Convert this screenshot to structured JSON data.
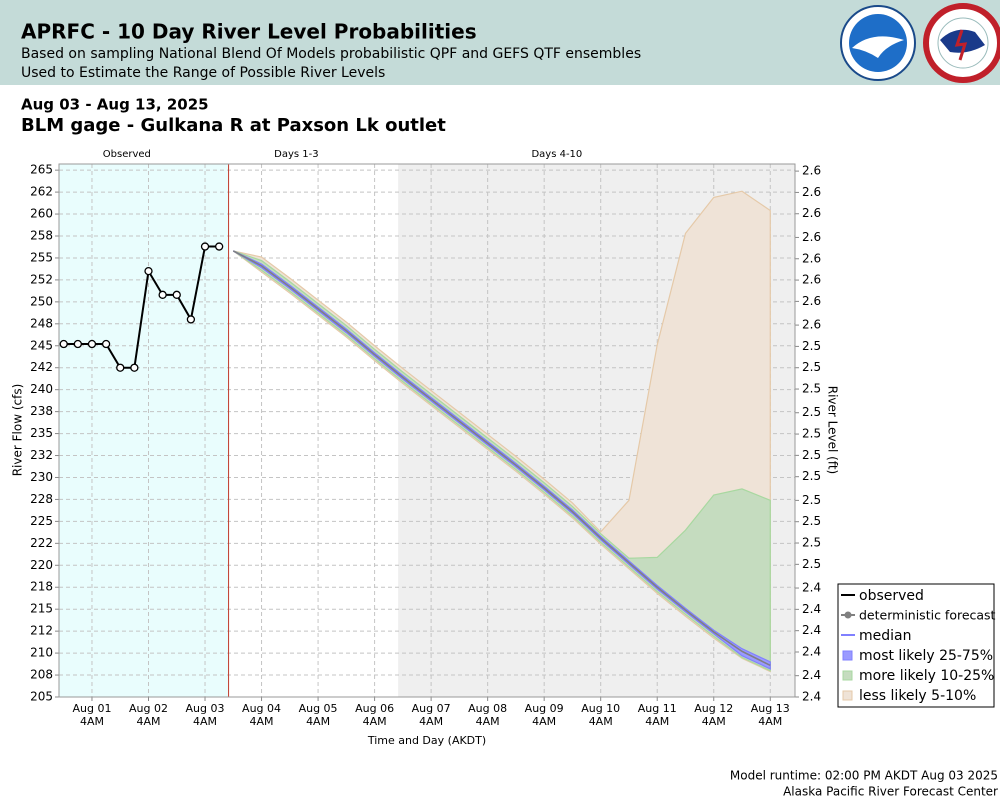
{
  "header": {
    "title": "APRFC - 10 Day River Level Probabilities",
    "subtitle": [
      "Based on sampling National Blend Of Models probabilistic QPF and GEFS QTF ensembles",
      "Used to Estimate the Range of Possible River Levels"
    ]
  },
  "chart_data": {
    "type": "line",
    "date_range": "Aug 03 - Aug 13, 2025",
    "title": "BLM gage - Gulkana R at Paxson Lk outlet",
    "ylabel": "River Flow (cfs)",
    "y2label": "River Level (ft)",
    "xlabel": "Time and Day (AKDT)",
    "xlim": [
      "2025-07-31T14:00",
      "2025-08-13T14:30"
    ],
    "xticks": [
      {
        "value": "2025-08-01T04:00",
        "label": [
          "Aug 01",
          "4AM"
        ]
      },
      {
        "value": "2025-08-02T04:00",
        "label": [
          "Aug 02",
          "4AM"
        ]
      },
      {
        "value": "2025-08-03T04:00",
        "label": [
          "Aug 03",
          "4AM"
        ]
      },
      {
        "value": "2025-08-04T04:00",
        "label": [
          "Aug 04",
          "4AM"
        ]
      },
      {
        "value": "2025-08-05T04:00",
        "label": [
          "Aug 05",
          "4AM"
        ]
      },
      {
        "value": "2025-08-06T04:00",
        "label": [
          "Aug 06",
          "4AM"
        ]
      },
      {
        "value": "2025-08-07T04:00",
        "label": [
          "Aug 07",
          "4AM"
        ]
      },
      {
        "value": "2025-08-08T04:00",
        "label": [
          "Aug 08",
          "4AM"
        ]
      },
      {
        "value": "2025-08-09T04:00",
        "label": [
          "Aug 09",
          "4AM"
        ]
      },
      {
        "value": "2025-08-10T04:00",
        "label": [
          "Aug 10",
          "4AM"
        ]
      },
      {
        "value": "2025-08-11T04:00",
        "label": [
          "Aug 11",
          "4AM"
        ]
      },
      {
        "value": "2025-08-12T04:00",
        "label": [
          "Aug 12",
          "4AM"
        ]
      },
      {
        "value": "2025-08-13T04:00",
        "label": [
          "Aug 13",
          "4AM"
        ]
      }
    ],
    "ylim": [
      205,
      265.7
    ],
    "yticks": [
      205,
      {
        "value": 207.5,
        "label": "208"
      },
      210,
      {
        "value": 212.5,
        "label": "212"
      },
      215,
      {
        "value": 217.5,
        "label": "218"
      },
      220,
      {
        "value": 222.5,
        "label": "222"
      },
      225,
      {
        "value": 227.5,
        "label": "228"
      },
      230,
      {
        "value": 232.5,
        "label": "232"
      },
      235,
      {
        "value": 237.5,
        "label": "238"
      },
      240,
      {
        "value": 242.5,
        "label": "242"
      },
      245,
      {
        "value": 247.5,
        "label": "248"
      },
      250,
      {
        "value": 252.5,
        "label": "252"
      },
      255,
      {
        "value": 257.5,
        "label": "258"
      },
      260,
      {
        "value": 262.5,
        "label": "262"
      },
      265
    ],
    "y2lim": [
      2.398,
      2.623
    ],
    "y2ticks": [
      {
        "value": 2.398,
        "label": "2.4"
      },
      {
        "value": 2.407,
        "label": "2.4"
      },
      {
        "value": 2.417,
        "label": "2.4"
      },
      {
        "value": 2.426,
        "label": "2.4"
      },
      {
        "value": 2.435,
        "label": "2.4"
      },
      {
        "value": 2.444,
        "label": "2.4"
      },
      {
        "value": 2.454,
        "label": "2.5"
      },
      {
        "value": 2.463,
        "label": "2.5"
      },
      {
        "value": 2.472,
        "label": "2.5"
      },
      {
        "value": 2.481,
        "label": "2.5"
      },
      {
        "value": 2.491,
        "label": "2.5"
      },
      {
        "value": 2.5,
        "label": "2.5"
      },
      {
        "value": 2.509,
        "label": "2.5"
      },
      {
        "value": 2.518,
        "label": "2.5"
      },
      {
        "value": 2.528,
        "label": "2.5"
      },
      {
        "value": 2.537,
        "label": "2.5"
      },
      {
        "value": 2.546,
        "label": "2.5"
      },
      {
        "value": 2.555,
        "label": "2.6"
      },
      {
        "value": 2.565,
        "label": "2.6"
      },
      {
        "value": 2.574,
        "label": "2.6"
      },
      {
        "value": 2.583,
        "label": "2.6"
      },
      {
        "value": 2.592,
        "label": "2.6"
      },
      {
        "value": 2.602,
        "label": "2.6"
      },
      {
        "value": 2.611,
        "label": "2.6"
      },
      {
        "value": 2.62,
        "label": "2.6"
      }
    ],
    "grid": true,
    "regions": [
      {
        "label": "Observed",
        "start": "2025-07-31T14:00",
        "end": "2025-08-03T14:00",
        "color": "#e9fdfd"
      },
      {
        "label": "Days 1-3",
        "start": "2025-08-03T14:00",
        "end": "2025-08-06T14:00",
        "color": "#ffffff"
      },
      {
        "label": "Days 4-10",
        "start": "2025-08-06T14:00",
        "end": "2025-08-13T14:30",
        "color": "#efefef"
      }
    ],
    "runtime_line": {
      "x": "2025-08-03T14:00",
      "color": "#c0392b"
    },
    "legend": "lower right",
    "series": [
      {
        "name": "observed",
        "color": "#000000",
        "marker": "circle",
        "x": [
          "2025-07-31T16:00",
          "2025-07-31T22:00",
          "2025-08-01T04:00",
          "2025-08-01T10:00",
          "2025-08-01T16:00",
          "2025-08-01T22:00",
          "2025-08-02T04:00",
          "2025-08-02T10:00",
          "2025-08-02T16:00",
          "2025-08-02T22:00",
          "2025-08-03T04:00",
          "2025-08-03T10:00"
        ],
        "values": [
          245.2,
          245.2,
          245.2,
          245.2,
          242.5,
          242.5,
          253.5,
          250.8,
          250.8,
          248.0,
          256.3,
          256.3
        ]
      },
      {
        "name": "deterministic forecast",
        "color": "#808080",
        "marker": "dot",
        "x": [
          "2025-08-03T16:00",
          "2025-08-04T04:00",
          "2025-08-04T16:00",
          "2025-08-05T04:00",
          "2025-08-05T16:00",
          "2025-08-06T04:00",
          "2025-08-06T16:00",
          "2025-08-07T04:00",
          "2025-08-07T16:00",
          "2025-08-08T04:00",
          "2025-08-08T16:00",
          "2025-08-09T04:00",
          "2025-08-09T16:00",
          "2025-08-10T04:00",
          "2025-08-10T16:00",
          "2025-08-11T04:00",
          "2025-08-11T16:00",
          "2025-08-12T04:00",
          "2025-08-12T16:00",
          "2025-08-13T04:00"
        ],
        "values": [
          255.8,
          254.1,
          251.7,
          249.2,
          246.7,
          244.0,
          241.4,
          238.9,
          236.4,
          233.9,
          231.4,
          228.8,
          226.1,
          223.1,
          220.3,
          217.5,
          214.9,
          212.4,
          210.2,
          208.6
        ]
      },
      {
        "name": "median",
        "color": "#8080ff",
        "x": [
          "2025-08-03T16:00",
          "2025-08-04T04:00",
          "2025-08-04T16:00",
          "2025-08-05T04:00",
          "2025-08-05T16:00",
          "2025-08-06T04:00",
          "2025-08-06T16:00",
          "2025-08-07T04:00",
          "2025-08-07T16:00",
          "2025-08-08T04:00",
          "2025-08-08T16:00",
          "2025-08-09T04:00",
          "2025-08-09T16:00",
          "2025-08-10T04:00",
          "2025-08-10T16:00",
          "2025-08-11T04:00",
          "2025-08-11T16:00",
          "2025-08-12T04:00",
          "2025-08-12T16:00",
          "2025-08-13T04:00"
        ],
        "values": [
          255.8,
          254.1,
          251.7,
          249.2,
          246.7,
          244.0,
          241.4,
          238.9,
          236.4,
          233.9,
          231.4,
          228.8,
          226.1,
          223.1,
          220.3,
          217.5,
          214.9,
          212.4,
          210.2,
          208.6
        ]
      },
      {
        "name": "most likely 25-75%",
        "color": "#8080ff",
        "fill": "#9a9aff",
        "x": [
          "2025-08-03T16:00",
          "2025-08-04T04:00",
          "2025-08-04T16:00",
          "2025-08-05T04:00",
          "2025-08-05T16:00",
          "2025-08-06T04:00",
          "2025-08-06T16:00",
          "2025-08-07T04:00",
          "2025-08-07T16:00",
          "2025-08-08T04:00",
          "2025-08-08T16:00",
          "2025-08-09T04:00",
          "2025-08-09T16:00",
          "2025-08-10T04:00",
          "2025-08-10T16:00",
          "2025-08-11T04:00",
          "2025-08-11T16:00",
          "2025-08-12T04:00",
          "2025-08-12T16:00",
          "2025-08-13T04:00"
        ],
        "lower": [
          255.8,
          253.9,
          251.5,
          249.0,
          246.5,
          243.8,
          241.2,
          238.7,
          236.2,
          233.7,
          231.2,
          228.6,
          225.9,
          222.9,
          220.1,
          217.3,
          214.7,
          212.2,
          209.7,
          208.2
        ],
        "upper": [
          255.8,
          254.3,
          251.9,
          249.4,
          246.9,
          244.2,
          241.6,
          239.1,
          236.6,
          234.1,
          231.6,
          229.0,
          226.3,
          223.3,
          220.5,
          217.7,
          215.1,
          212.6,
          210.5,
          209.0
        ]
      },
      {
        "name": "more likely 10-25%",
        "color": "#a8d8a0",
        "fill": "#c5dcbf",
        "x": [
          "2025-08-03T16:00",
          "2025-08-04T04:00",
          "2025-08-04T16:00",
          "2025-08-05T04:00",
          "2025-08-05T16:00",
          "2025-08-06T04:00",
          "2025-08-06T16:00",
          "2025-08-07T04:00",
          "2025-08-07T16:00",
          "2025-08-08T04:00",
          "2025-08-08T16:00",
          "2025-08-09T04:00",
          "2025-08-09T16:00",
          "2025-08-10T04:00",
          "2025-08-10T16:00",
          "2025-08-11T04:00",
          "2025-08-11T16:00",
          "2025-08-12T04:00",
          "2025-08-12T16:00",
          "2025-08-13T04:00"
        ],
        "lower": [
          255.8,
          253.6,
          251.2,
          248.7,
          246.2,
          243.5,
          240.9,
          238.4,
          235.9,
          233.4,
          230.9,
          228.3,
          225.6,
          222.6,
          219.8,
          217.0,
          214.4,
          211.9,
          209.5,
          208.0
        ],
        "upper": [
          255.8,
          254.7,
          252.3,
          249.8,
          247.3,
          244.6,
          242.0,
          239.5,
          237.0,
          234.5,
          232.0,
          229.4,
          226.7,
          223.6,
          220.8,
          220.9,
          224.0,
          228.0,
          228.7,
          227.4
        ]
      },
      {
        "name": "less likely 5-10%",
        "color": "#e5c9a8",
        "fill": "#efe3d7",
        "x": [
          "2025-08-03T16:00",
          "2025-08-04T04:00",
          "2025-08-04T16:00",
          "2025-08-05T04:00",
          "2025-08-05T16:00",
          "2025-08-06T04:00",
          "2025-08-06T16:00",
          "2025-08-07T04:00",
          "2025-08-07T16:00",
          "2025-08-08T04:00",
          "2025-08-08T16:00",
          "2025-08-09T04:00",
          "2025-08-09T16:00",
          "2025-08-10T04:00",
          "2025-08-10T16:00",
          "2025-08-11T04:00",
          "2025-08-11T16:00",
          "2025-08-12T04:00",
          "2025-08-12T16:00",
          "2025-08-13T04:00"
        ],
        "lower": [
          255.8,
          253.4,
          251.0,
          248.5,
          246.0,
          243.3,
          240.7,
          238.2,
          235.7,
          233.2,
          230.7,
          228.1,
          225.4,
          222.4,
          219.6,
          216.8,
          214.2,
          211.7,
          209.4,
          207.9
        ],
        "upper": [
          255.8,
          255.1,
          252.7,
          250.2,
          247.7,
          245.0,
          242.4,
          239.9,
          237.4,
          234.9,
          232.4,
          229.8,
          227.1,
          223.8,
          227.4,
          245.1,
          257.8,
          261.9,
          262.6,
          260.4
        ]
      }
    ],
    "footer": [
      "Model runtime: 02:00 PM AKDT Aug 03 2025",
      "Alaska Pacific River Forecast Center"
    ]
  }
}
